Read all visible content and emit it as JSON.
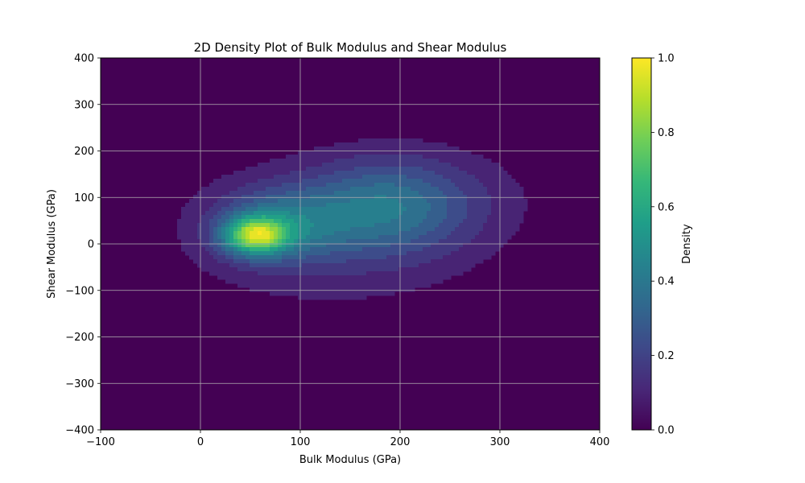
{
  "chart_data": {
    "type": "heatmap",
    "subtype": "filled-contour-2d-density",
    "title": "2D Density Plot of Bulk Modulus and Shear Modulus",
    "xlabel": "Bulk Modulus (GPa)",
    "ylabel": "Shear Modulus (GPa)",
    "xlim": [
      -100,
      400
    ],
    "ylim": [
      -400,
      400
    ],
    "xticks": [
      -100,
      0,
      100,
      200,
      300,
      400
    ],
    "xtick_labels": [
      "−100",
      "0",
      "100",
      "200",
      "300",
      "400"
    ],
    "yticks": [
      -400,
      -300,
      -200,
      -100,
      0,
      100,
      200,
      300,
      400
    ],
    "ytick_labels": [
      "−400",
      "−300",
      "−200",
      "−100",
      "0",
      "100",
      "200",
      "300",
      "400"
    ],
    "grid": true,
    "colormap": "viridis",
    "colorbar": {
      "label": "Density",
      "range": [
        0.0,
        1.0
      ],
      "ticks": [
        0.0,
        0.2,
        0.4,
        0.6,
        0.8,
        1.0
      ],
      "tick_labels": [
        "0.0",
        "0.2",
        "0.4",
        "0.6",
        "0.8",
        "1.0"
      ]
    },
    "contour_levels": [
      0.0,
      0.067,
      0.133,
      0.2,
      0.267,
      0.333,
      0.4,
      0.467,
      0.533,
      0.6,
      0.667,
      0.733,
      0.8,
      0.867,
      0.933,
      1.0
    ],
    "density_components": [
      {
        "x": 55,
        "y": 18,
        "sx": 22,
        "sy": 28,
        "weight": 1.0
      },
      {
        "x": 80,
        "y": 40,
        "sx": 45,
        "sy": 55,
        "weight": 0.45
      },
      {
        "x": 185,
        "y": 80,
        "sx": 55,
        "sy": 70,
        "weight": 0.42
      },
      {
        "x": 130,
        "y": 20,
        "sx": 110,
        "sy": 120,
        "weight": 0.18
      },
      {
        "x": 250,
        "y": 100,
        "sx": 70,
        "sy": 80,
        "weight": 0.1
      }
    ],
    "peak": {
      "x": 55,
      "y": 18,
      "density": 1.0
    }
  },
  "colors": {
    "background": "#ffffff",
    "grid": "#b0b0b0",
    "viridis": [
      "#440154",
      "#482878",
      "#3e4989",
      "#31688e",
      "#26828e",
      "#1f9e89",
      "#35b779",
      "#6ece58",
      "#b5de2b",
      "#fde725"
    ]
  }
}
